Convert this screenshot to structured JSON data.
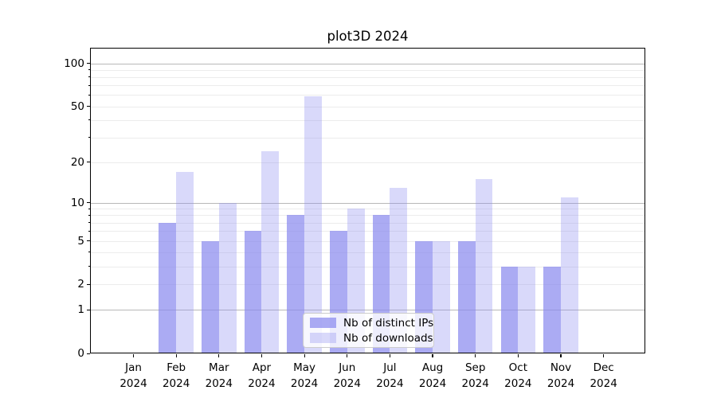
{
  "title": "plot3D 2024",
  "legend": {
    "items": [
      {
        "label": "Nb of distinct IPs",
        "css_color": "rgba(136,136,238,0.7)"
      },
      {
        "label": "Nb of downloads",
        "css_color": "rgba(136,136,238,0.32)"
      }
    ],
    "position": "lower center"
  },
  "x_axis": {
    "months": [
      "Jan",
      "Feb",
      "Mar",
      "Apr",
      "May",
      "Jun",
      "Jul",
      "Aug",
      "Sep",
      "Oct",
      "Nov",
      "Dec"
    ],
    "year": "2024"
  },
  "y_axis": {
    "tick_labels": [
      "0",
      "1",
      "2",
      "5",
      "10",
      "20",
      "50",
      "100"
    ]
  },
  "chart_data": {
    "type": "bar",
    "title": "plot3D 2024",
    "scale": "log1p",
    "categories": [
      "Jan 2024",
      "Feb 2024",
      "Mar 2024",
      "Apr 2024",
      "May 2024",
      "Jun 2024",
      "Jul 2024",
      "Aug 2024",
      "Sep 2024",
      "Oct 2024",
      "Nov 2024",
      "Dec 2024"
    ],
    "series": [
      {
        "name": "Nb of distinct IPs",
        "color": "#acacf3",
        "css_color": "rgba(136,136,238,0.7)",
        "values": [
          0,
          7,
          5,
          6,
          8,
          6,
          8,
          5,
          5,
          3,
          3,
          0
        ]
      },
      {
        "name": "Nb of downloads",
        "color": "#d9d9fa",
        "css_color": "rgba(136,136,238,0.32)",
        "values": [
          0,
          17,
          10,
          24,
          59,
          9,
          13,
          5,
          15,
          3,
          11,
          0
        ]
      }
    ],
    "yticks": [
      0,
      1,
      2,
      5,
      10,
      20,
      50,
      100
    ],
    "minor_grid_values": [
      3,
      4,
      6,
      7,
      8,
      9,
      30,
      40,
      60,
      70,
      80,
      90
    ],
    "major_grid_values": [
      1,
      10,
      100
    ],
    "ylim": [
      0,
      127
    ],
    "grid": "horizontal log grid, major + minor",
    "legend_position": "lower center"
  }
}
